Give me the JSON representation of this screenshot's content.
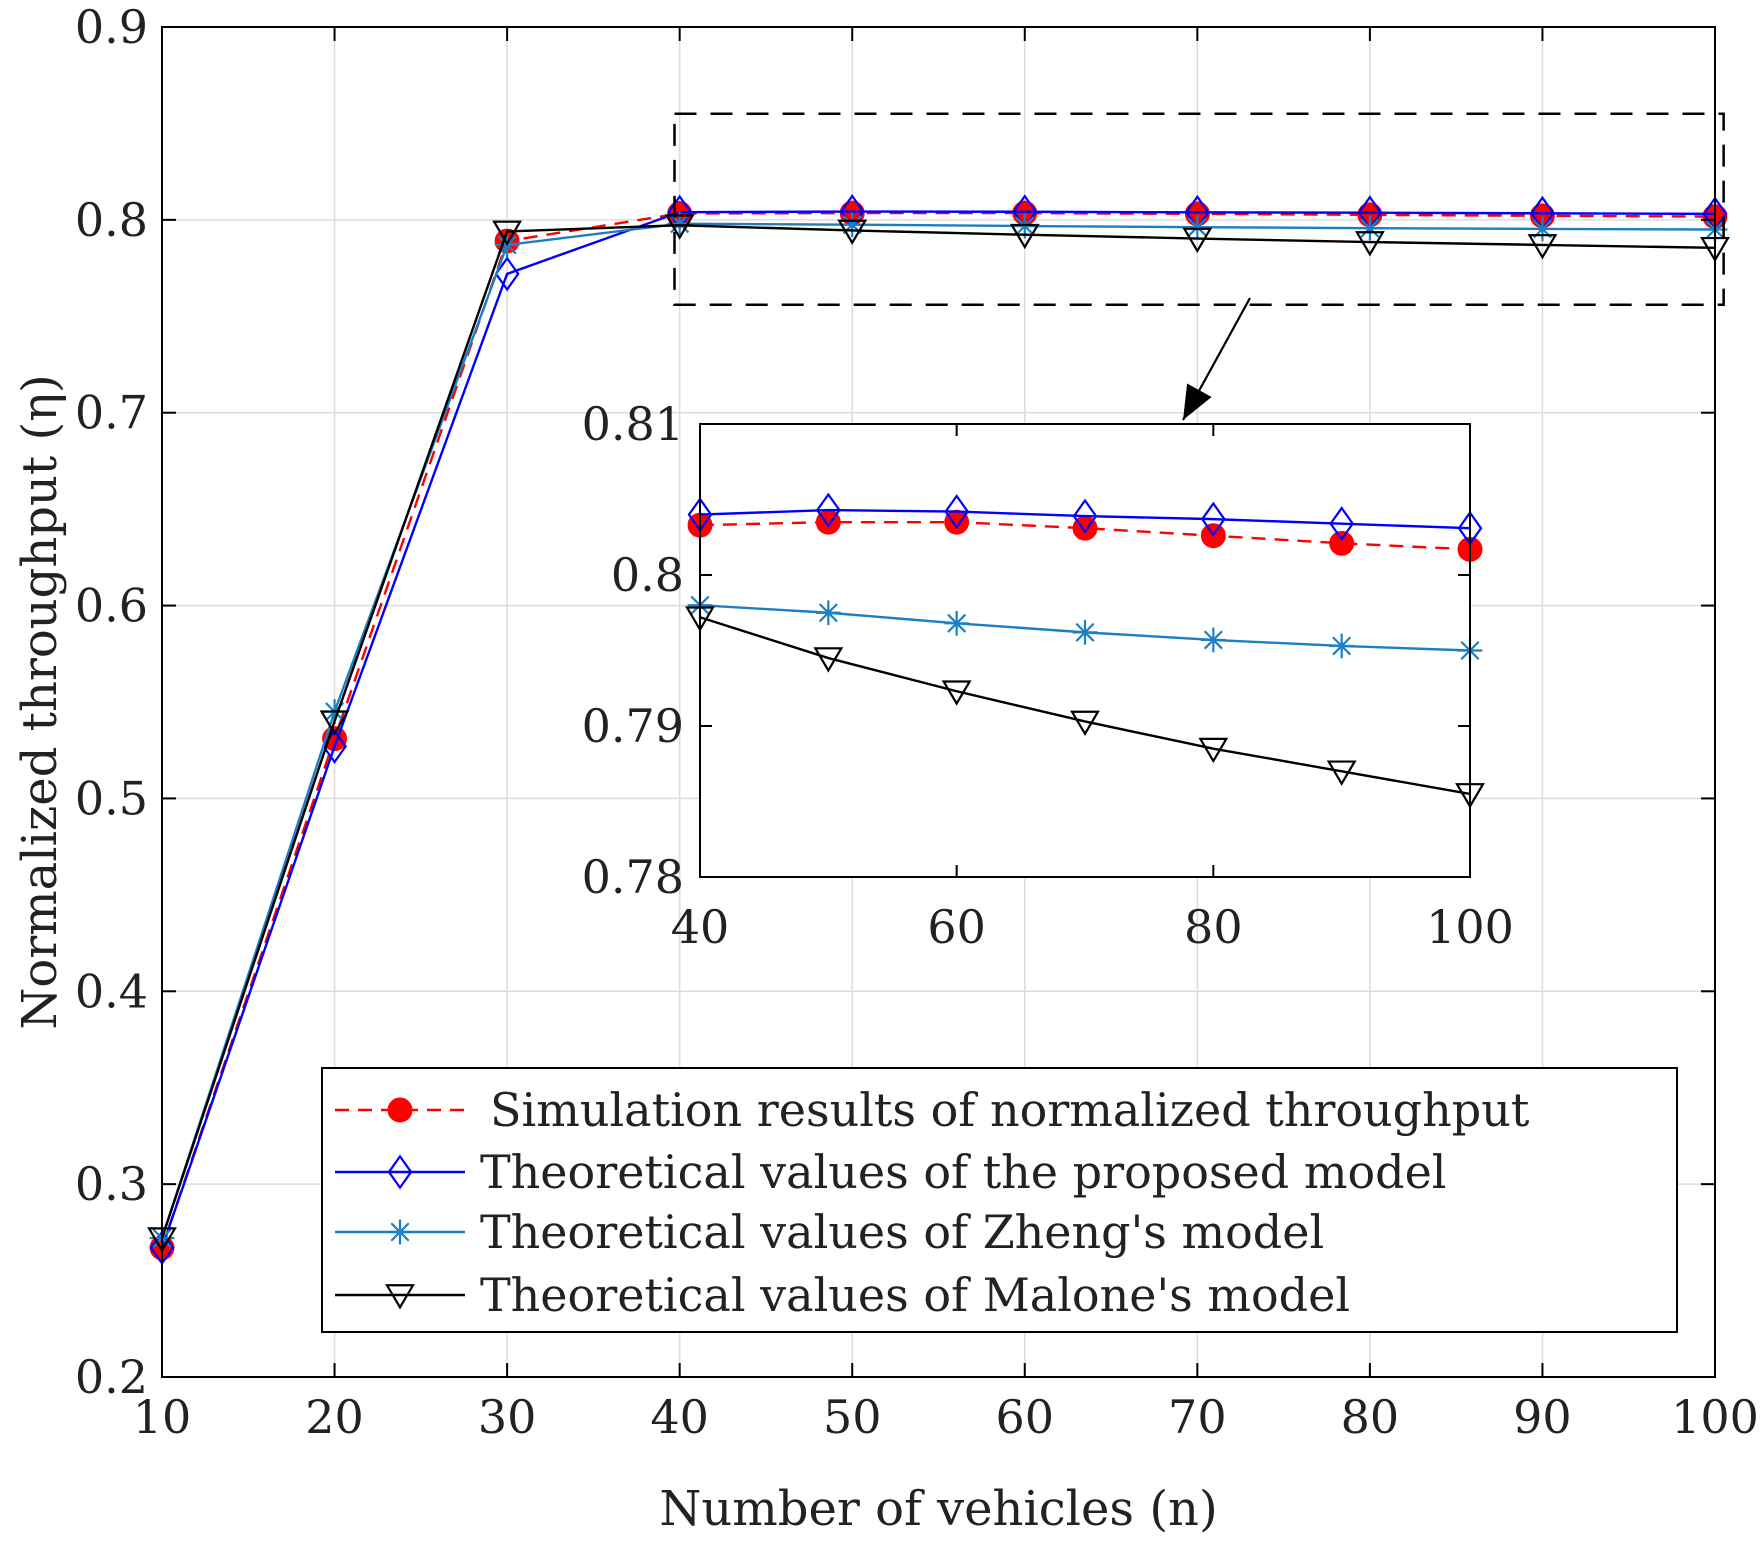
{
  "chart_data": {
    "type": "line",
    "xlabel": "Number of vehicles (n)",
    "ylabel": "Normalized throughput (η)",
    "xlim": [
      10,
      100
    ],
    "ylim": [
      0.2,
      0.9
    ],
    "xticks": [
      10,
      20,
      30,
      40,
      50,
      60,
      70,
      80,
      90,
      100
    ],
    "yticks": [
      0.2,
      0.3,
      0.4,
      0.5,
      0.6,
      0.7,
      0.8,
      0.9
    ],
    "xtick_labels": [
      "10",
      "20",
      "30",
      "40",
      "50",
      "60",
      "70",
      "80",
      "90",
      "100"
    ],
    "ytick_labels": [
      "0.2",
      "0.3",
      "0.4",
      "0.5",
      "0.6",
      "0.7",
      "0.8",
      "0.9"
    ],
    "grid": true,
    "legend_position": "bottom-right",
    "x": [
      10,
      20,
      30,
      40,
      50,
      60,
      70,
      80,
      90,
      100
    ],
    "series": [
      {
        "name": "Simulation results of  normalized throughput",
        "color": "#ff0000",
        "line": "dashed",
        "marker": "filled-circle",
        "values": [
          0.267,
          0.531,
          0.789,
          0.8033,
          0.8035,
          0.8035,
          0.8031,
          0.8026,
          0.8021,
          0.8017
        ]
      },
      {
        "name": "Theoretical values of the proposed model",
        "color": "#0000ff",
        "line": "solid",
        "marker": "diamond",
        "values": [
          0.267,
          0.527,
          0.772,
          0.804,
          0.8043,
          0.8042,
          0.8039,
          0.8037,
          0.8034,
          0.8031
        ]
      },
      {
        "name": "Theoretical values of Zheng's model",
        "color": "#1a7fc4",
        "line": "solid",
        "marker": "asterisk",
        "values": [
          0.272,
          0.545,
          0.787,
          0.798,
          0.7975,
          0.7968,
          0.7962,
          0.7957,
          0.7953,
          0.795
        ]
      },
      {
        "name": "Theoretical values of Malone's model",
        "color": "#000000",
        "line": "solid",
        "marker": "down-triangle",
        "values": [
          0.272,
          0.54,
          0.794,
          0.7972,
          0.7945,
          0.7923,
          0.7903,
          0.7885,
          0.787,
          0.7855
        ]
      }
    ],
    "inset": {
      "x": [
        40,
        50,
        60,
        70,
        80,
        90,
        100
      ],
      "xlim": [
        40,
        100
      ],
      "ylim": [
        0.78,
        0.81
      ],
      "xticks": [
        40,
        60,
        80,
        100
      ],
      "yticks": [
        0.78,
        0.79,
        0.8,
        0.81
      ],
      "xtick_labels": [
        "40",
        "60",
        "80",
        "100"
      ],
      "ytick_labels": [
        "0.78",
        "0.79",
        "0.8",
        "0.81"
      ],
      "grid": false
    }
  }
}
